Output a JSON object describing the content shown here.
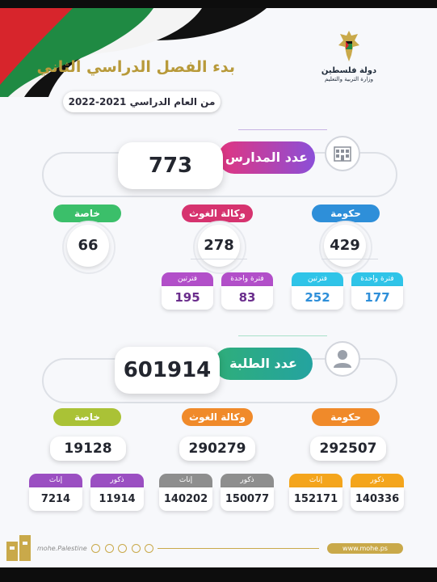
{
  "header": {
    "title": "بدء الفصل الدراسي الثاني",
    "subtitle": "من العام الدراسي 2021-2022",
    "state": "دولة فلسطين",
    "ministry": "وزارة التربية والتعليم"
  },
  "schools": {
    "label": "عدد المدارس",
    "total": "773",
    "government": {
      "label": "حكومة",
      "value": "429",
      "one_shift": {
        "label": "فترة واحدة",
        "value": "177"
      },
      "two_shifts": {
        "label": "فترتين",
        "value": "252"
      }
    },
    "unrwa": {
      "label": "وكالة الغوث",
      "value": "278",
      "one_shift": {
        "label": "فترة واحدة",
        "value": "83"
      },
      "two_shifts": {
        "label": "فترتين",
        "value": "195"
      }
    },
    "private": {
      "label": "خاصة",
      "value": "66"
    }
  },
  "students": {
    "label": "عدد الطلبة",
    "total": "601914",
    "government": {
      "label": "حكومة",
      "value": "292507",
      "males": {
        "label": "ذكور",
        "value": "140336"
      },
      "females": {
        "label": "إناث",
        "value": "152171"
      }
    },
    "unrwa": {
      "label": "وكالة الغوث",
      "value": "290279",
      "males": {
        "label": "ذكور",
        "value": "150077"
      },
      "females": {
        "label": "إناث",
        "value": "140202"
      }
    },
    "private": {
      "label": "خاصة",
      "value": "19128",
      "males": {
        "label": "ذكور",
        "value": "11914"
      },
      "females": {
        "label": "إناث",
        "value": "7214"
      }
    }
  },
  "footer": {
    "handle": "mohe.Palestine",
    "website": "www.mohe.ps"
  },
  "colors": {
    "government": "#2e8fd9",
    "unrwa": "#d6336f",
    "private": "#3bbf6a",
    "gov_students": "#f08a2a",
    "unrwa_students": "#f08a2a",
    "private_students": "#aac236",
    "schools_label": "#9b4fd6",
    "students_label": "#2fae7a",
    "gold": "#c9a94a"
  }
}
